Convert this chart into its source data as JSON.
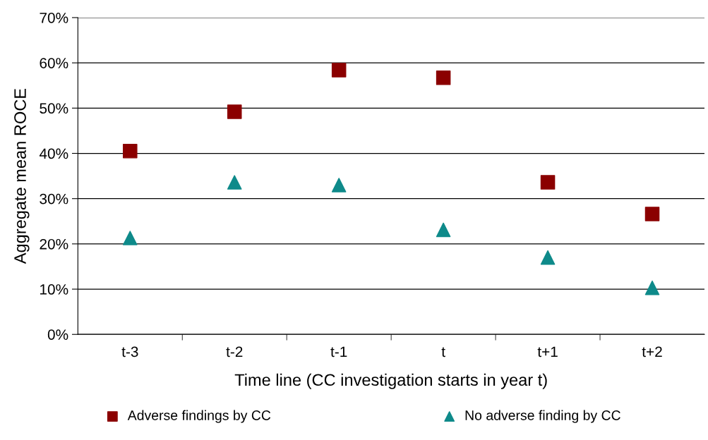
{
  "chart_data": {
    "type": "scatter",
    "xlabel": "Time line (CC investigation starts in year t)",
    "ylabel": "Aggregate mean ROCE",
    "categories": [
      "t-3",
      "t-2",
      "t-1",
      "t",
      "t+1",
      "t+2"
    ],
    "series": [
      {
        "name": "Adverse findings by CC",
        "color": "#8b0000",
        "marker": "square",
        "values": [
          40.5,
          49.2,
          58.4,
          56.7,
          33.6,
          26.6
        ]
      },
      {
        "name": "No adverse finding by CC",
        "color": "#0e8a8a",
        "marker": "triangle",
        "values": [
          21.3,
          33.6,
          33.0,
          23.1,
          17.0,
          10.3
        ]
      }
    ],
    "ylim": [
      0,
      70
    ],
    "yticks": [
      {
        "value": 0,
        "label": "0%"
      },
      {
        "value": 10,
        "label": "10%"
      },
      {
        "value": 20,
        "label": "20%"
      },
      {
        "value": 30,
        "label": "30%"
      },
      {
        "value": 40,
        "label": "40%"
      },
      {
        "value": 50,
        "label": "50%"
      },
      {
        "value": 60,
        "label": "60%"
      },
      {
        "value": 70,
        "label": "70%"
      }
    ],
    "grid": "y",
    "legend": "bottom"
  }
}
